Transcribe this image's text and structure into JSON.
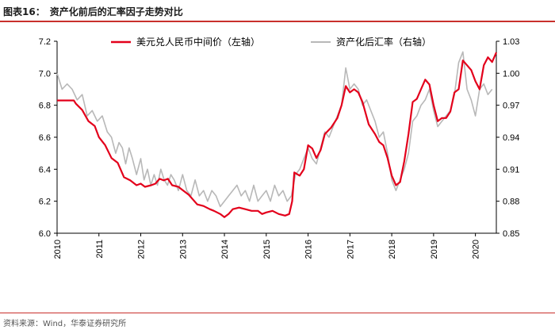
{
  "figure": {
    "number": "图表16：",
    "title": "资产化前后的汇率因子走势对比",
    "source": "资料来源：Wind，华泰证券研究所"
  },
  "colors": {
    "red": "#e3001b",
    "gray": "#b8b8b8",
    "rule": "#c9302c",
    "axis": "#000000"
  },
  "chart_data": {
    "type": "line",
    "legend": [
      "美元兑人民币中间价（左轴）",
      "资产化后汇率（右轴）"
    ],
    "xlabel": "",
    "ylabel_left": "",
    "ylabel_right": "",
    "x_ticks": [
      "2010",
      "2011",
      "2012",
      "2013",
      "2014",
      "2015",
      "2016",
      "2017",
      "2018",
      "2019",
      "2020"
    ],
    "x_range": [
      2010.0,
      2020.5
    ],
    "y_left_range": [
      6.0,
      7.2
    ],
    "y_left_ticks": [
      "6.0",
      "6.2",
      "6.4",
      "6.6",
      "6.8",
      "7.0",
      "7.2"
    ],
    "y_right_range": [
      0.85,
      1.03
    ],
    "y_right_ticks": [
      "0.85",
      "0.88",
      "0.91",
      "0.94",
      "0.97",
      "1.00",
      "1.03"
    ],
    "series": [
      {
        "name": "美元兑人民币中间价（左轴）",
        "axis": "left",
        "x": [
          2010.0,
          2010.4,
          2010.45,
          2010.6,
          2010.75,
          2010.9,
          2011.0,
          2011.15,
          2011.3,
          2011.45,
          2011.6,
          2011.75,
          2011.9,
          2012.0,
          2012.1,
          2012.25,
          2012.35,
          2012.45,
          2012.55,
          2012.65,
          2012.75,
          2012.9,
          2013.0,
          2013.15,
          2013.25,
          2013.35,
          2013.5,
          2013.65,
          2013.75,
          2013.9,
          2014.0,
          2014.1,
          2014.2,
          2014.35,
          2014.5,
          2014.65,
          2014.8,
          2014.9,
          2015.0,
          2015.15,
          2015.3,
          2015.45,
          2015.55,
          2015.62,
          2015.67,
          2015.8,
          2015.9,
          2016.0,
          2016.1,
          2016.2,
          2016.3,
          2016.4,
          2016.55,
          2016.7,
          2016.8,
          2016.9,
          2017.0,
          2017.1,
          2017.2,
          2017.3,
          2017.45,
          2017.6,
          2017.7,
          2017.8,
          2017.9,
          2018.0,
          2018.1,
          2018.2,
          2018.3,
          2018.4,
          2018.5,
          2018.6,
          2018.7,
          2018.8,
          2018.9,
          2019.0,
          2019.1,
          2019.2,
          2019.3,
          2019.4,
          2019.5,
          2019.6,
          2019.7,
          2019.8,
          2019.9,
          2020.0,
          2020.1,
          2020.2,
          2020.3,
          2020.4,
          2020.5
        ],
        "values": [
          6.83,
          6.83,
          6.81,
          6.77,
          6.7,
          6.67,
          6.6,
          6.55,
          6.47,
          6.44,
          6.35,
          6.33,
          6.3,
          6.31,
          6.29,
          6.3,
          6.31,
          6.34,
          6.33,
          6.34,
          6.3,
          6.29,
          6.27,
          6.24,
          6.21,
          6.18,
          6.17,
          6.15,
          6.14,
          6.12,
          6.1,
          6.12,
          6.15,
          6.16,
          6.15,
          6.14,
          6.14,
          6.12,
          6.13,
          6.14,
          6.12,
          6.11,
          6.12,
          6.2,
          6.38,
          6.36,
          6.4,
          6.55,
          6.53,
          6.47,
          6.52,
          6.62,
          6.66,
          6.72,
          6.8,
          6.92,
          6.88,
          6.9,
          6.88,
          6.82,
          6.68,
          6.62,
          6.57,
          6.55,
          6.47,
          6.36,
          6.3,
          6.32,
          6.45,
          6.62,
          6.82,
          6.84,
          6.9,
          6.96,
          6.93,
          6.8,
          6.7,
          6.72,
          6.72,
          6.76,
          6.88,
          6.9,
          7.08,
          7.05,
          7.02,
          6.95,
          6.9,
          7.05,
          7.1,
          7.07,
          7.13
        ]
      },
      {
        "name": "资产化后汇率（右轴）",
        "axis": "right",
        "x": [
          2010.0,
          2010.12,
          2010.24,
          2010.36,
          2010.48,
          2010.6,
          2010.72,
          2010.84,
          2010.96,
          2011.08,
          2011.2,
          2011.3,
          2011.4,
          2011.48,
          2011.56,
          2011.64,
          2011.72,
          2011.8,
          2011.9,
          2012.0,
          2012.08,
          2012.16,
          2012.24,
          2012.32,
          2012.4,
          2012.48,
          2012.56,
          2012.64,
          2012.72,
          2012.8,
          2012.9,
          2013.0,
          2013.1,
          2013.2,
          2013.3,
          2013.4,
          2013.5,
          2013.6,
          2013.7,
          2013.8,
          2013.9,
          2014.0,
          2014.1,
          2014.2,
          2014.3,
          2014.4,
          2014.5,
          2014.6,
          2014.7,
          2014.8,
          2014.9,
          2015.0,
          2015.1,
          2015.2,
          2015.3,
          2015.4,
          2015.5,
          2015.6,
          2015.7,
          2015.8,
          2015.9,
          2016.0,
          2016.1,
          2016.2,
          2016.3,
          2016.4,
          2016.5,
          2016.6,
          2016.7,
          2016.8,
          2016.9,
          2017.0,
          2017.1,
          2017.2,
          2017.3,
          2017.4,
          2017.5,
          2017.6,
          2017.7,
          2017.8,
          2017.9,
          2018.0,
          2018.1,
          2018.2,
          2018.3,
          2018.4,
          2018.5,
          2018.6,
          2018.7,
          2018.8,
          2018.9,
          2019.0,
          2019.1,
          2019.2,
          2019.3,
          2019.4,
          2019.5,
          2019.6,
          2019.7,
          2019.8,
          2019.9,
          2020.0,
          2020.1,
          2020.2,
          2020.3,
          2020.4
        ],
        "values": [
          1.0,
          0.985,
          0.99,
          0.985,
          0.975,
          0.98,
          0.96,
          0.965,
          0.955,
          0.96,
          0.945,
          0.94,
          0.925,
          0.935,
          0.93,
          0.915,
          0.93,
          0.92,
          0.905,
          0.92,
          0.9,
          0.91,
          0.895,
          0.905,
          0.895,
          0.91,
          0.9,
          0.895,
          0.905,
          0.9,
          0.89,
          0.905,
          0.89,
          0.885,
          0.9,
          0.885,
          0.89,
          0.88,
          0.89,
          0.885,
          0.875,
          0.88,
          0.885,
          0.89,
          0.895,
          0.885,
          0.89,
          0.88,
          0.895,
          0.88,
          0.885,
          0.89,
          0.88,
          0.895,
          0.885,
          0.89,
          0.88,
          0.885,
          0.905,
          0.91,
          0.92,
          0.93,
          0.92,
          0.915,
          0.93,
          0.945,
          0.94,
          0.95,
          0.96,
          0.97,
          1.005,
          0.985,
          0.99,
          0.985,
          0.97,
          0.975,
          0.965,
          0.955,
          0.94,
          0.945,
          0.925,
          0.9,
          0.89,
          0.9,
          0.91,
          0.925,
          0.955,
          0.96,
          0.97,
          0.975,
          0.985,
          0.965,
          0.95,
          0.955,
          0.96,
          0.965,
          0.98,
          1.01,
          1.02,
          0.985,
          0.975,
          0.96,
          0.985,
          0.99,
          0.98,
          0.985
        ]
      }
    ]
  }
}
